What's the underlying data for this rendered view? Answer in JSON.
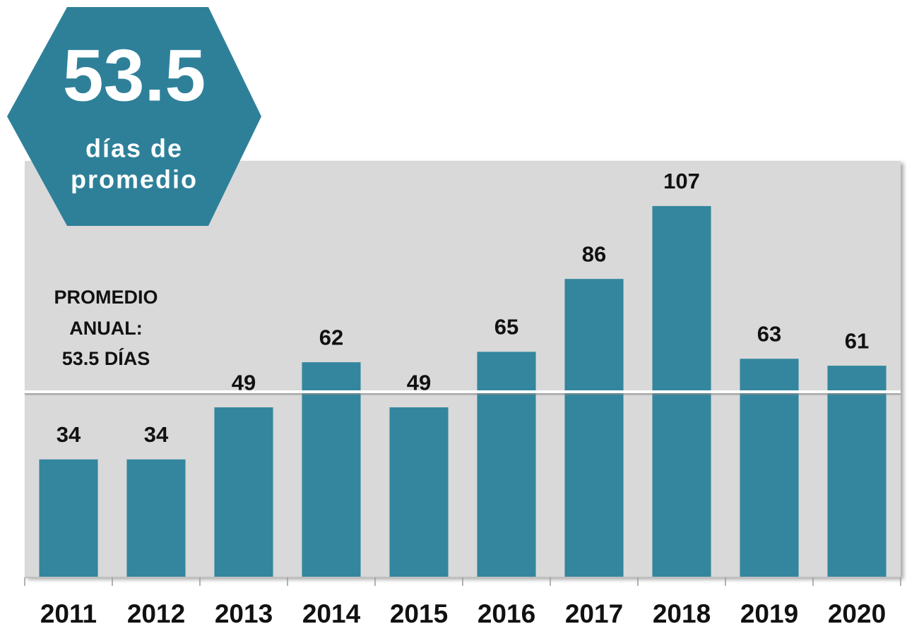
{
  "chart_data": {
    "type": "bar",
    "categories": [
      "2011",
      "2012",
      "2013",
      "2014",
      "2015",
      "2016",
      "2017",
      "2018",
      "2019",
      "2020"
    ],
    "values": [
      34,
      34,
      49,
      62,
      49,
      65,
      86,
      107,
      63,
      61
    ],
    "color": "#33869e",
    "ylim": [
      0,
      120
    ],
    "average": 53.5,
    "average_caption": [
      "días de",
      "promedio"
    ],
    "annotation": [
      "PROMEDIO",
      "ANUAL:",
      "53.5 DÍAS"
    ]
  }
}
